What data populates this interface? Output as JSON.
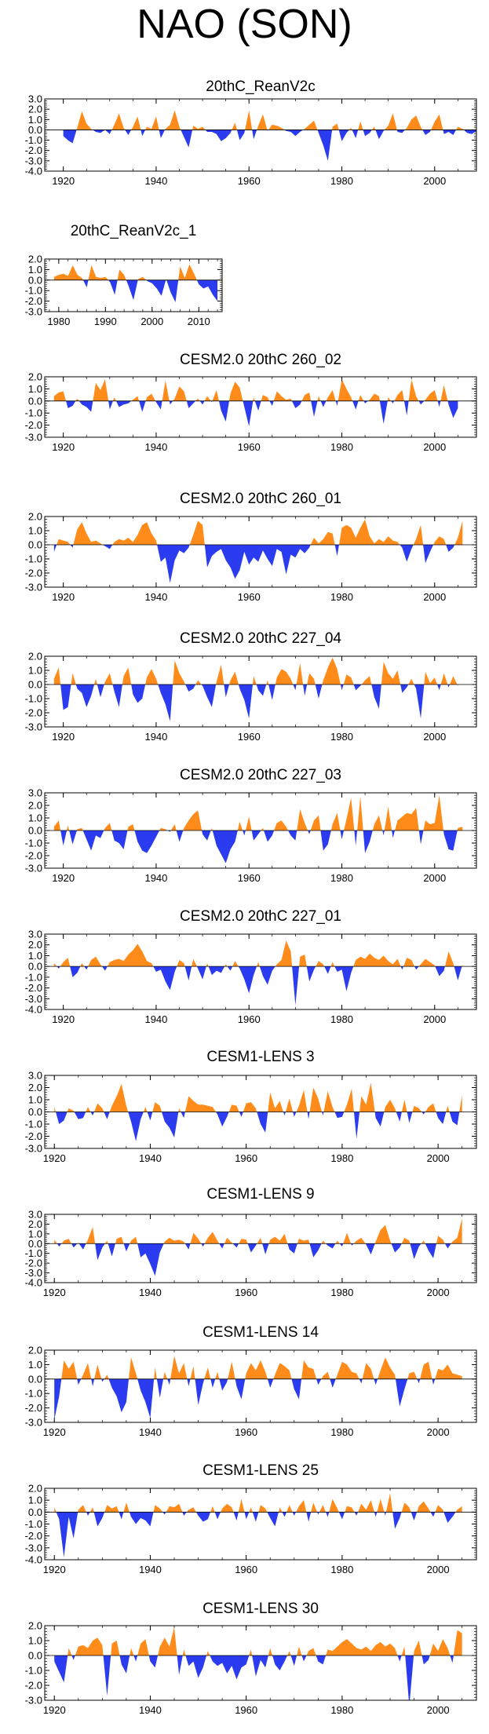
{
  "page_title": "NAO (SON)",
  "colors": {
    "positive": "#ff8c1a",
    "negative": "#2b3bef",
    "axis": "#000000"
  },
  "chart_data": [
    {
      "type": "area",
      "title": "20thC_ReanV2c",
      "x_start": 1920,
      "x_end": 2007,
      "xlim": [
        1916,
        2009
      ],
      "ylim": [
        -4.0,
        3.0
      ],
      "yticks": [
        "3.0",
        "2.0",
        "1.0",
        "0.0",
        "-1.0",
        "-2.0",
        "-3.0",
        "-4.0"
      ],
      "xticks": [
        "1920",
        "1940",
        "1960",
        "1980",
        "2000"
      ],
      "values": [
        -0.6,
        -1.0,
        -1.3,
        0.2,
        1.8,
        0.6,
        0.1,
        -0.2,
        -0.3,
        0.0,
        -0.4,
        0.5,
        1.6,
        0.2,
        -0.5,
        0.3,
        1.3,
        -0.6,
        0.3,
        0.1,
        1.3,
        -0.8,
        0.1,
        0.5,
        1.9,
        0.3,
        -0.7,
        -1.7,
        0.4,
        0.1,
        0.3,
        -0.2,
        -0.2,
        -0.4,
        -1.1,
        -0.8,
        -0.3,
        0.7,
        -1.0,
        -0.3,
        1.9,
        -0.9,
        0.4,
        1.5,
        -0.1,
        0.5,
        0.4,
        0.2,
        -0.1,
        -0.2,
        -0.6,
        -0.2,
        0.1,
        0.5,
        0.9,
        -0.3,
        -1.5,
        -3.0,
        0.3,
        0.6,
        -1.1,
        -0.3,
        0.2,
        -0.8,
        0.8,
        -0.6,
        -0.3,
        0.3,
        -0.9,
        -0.1,
        0.4,
        1.6,
        -0.2,
        -0.3,
        0.2,
        1.0,
        1.4,
        0.3,
        -0.5,
        -0.2,
        0.8,
        1.5,
        -0.4,
        -0.2,
        -0.5,
        0.3,
        0.1,
        -0.3,
        -0.4,
        -0.1
      ]
    },
    {
      "type": "area",
      "title": "20thC_ReanV2c_1",
      "x_start": 1979,
      "x_end": 2014,
      "xlim": [
        1977,
        2015
      ],
      "ylim": [
        -3.0,
        2.0
      ],
      "yticks": [
        "2.0",
        "1.0",
        "0.0",
        "-1.0",
        "-2.0",
        "-3.0"
      ],
      "xticks": [
        "1980",
        "1990",
        "2000",
        "2010"
      ],
      "values": [
        0.3,
        0.5,
        0.6,
        0.4,
        1.4,
        0.5,
        0.2,
        -0.7,
        1.4,
        0.3,
        0.2,
        0.3,
        -0.2,
        -1.4,
        1.0,
        0.5,
        -0.6,
        -1.9,
        0.1,
        0.3,
        -0.1,
        -0.3,
        -0.8,
        -1.5,
        0.1,
        -1.2,
        -2.1,
        1.3,
        0.2,
        1.5,
        0.6,
        -0.4,
        -0.8,
        -0.6,
        -1.4,
        -2.0
      ]
    },
    {
      "type": "area",
      "title": "CESM2.0 20thC 260_02",
      "x_start": 1918,
      "x_end": 2005,
      "xlim": [
        1916,
        2009
      ],
      "ylim": [
        -3.0,
        2.0
      ],
      "yticks": [
        "2.0",
        "1.0",
        "0.0",
        "-1.0",
        "-2.0",
        "-3.0"
      ],
      "xticks": [
        "1920",
        "1940",
        "1960",
        "1980",
        "2000"
      ],
      "values": [
        0.4,
        0.7,
        0.8,
        -0.6,
        -0.4,
        0.2,
        -0.3,
        -0.5,
        -0.9,
        1.5,
        0.9,
        1.8,
        -0.7,
        0.3,
        -0.5,
        -0.3,
        -0.2,
        0.1,
        0.4,
        -0.9,
        0.3,
        0.6,
        -0.1,
        -0.7,
        1.7,
        -0.3,
        0.2,
        1.2,
        0.8,
        -0.6,
        -0.2,
        0.2,
        -0.3,
        0.4,
        -0.1,
        0.9,
        -0.8,
        -1.7,
        0.6,
        1.6,
        1.1,
        -0.5,
        -2.1,
        0.3,
        -0.8,
        0.5,
        0.3,
        -0.4,
        0.8,
        0.4,
        0.1,
        0.2,
        -0.6,
        -0.3,
        0.5,
        0.7,
        -1.3,
        0.4,
        -0.5,
        0.3,
        0.9,
        -0.4,
        1.8,
        1.0,
        0.3,
        -0.7,
        0.5,
        -0.2,
        0.1,
        0.6,
        0.4,
        -1.9,
        0.3,
        -0.2,
        0.5,
        0.9,
        -1.2,
        1.8,
        0.4,
        -0.3,
        0.1,
        0.6,
        0.9,
        -0.5,
        1.3,
        -0.3,
        -1.4,
        -0.6
      ]
    },
    {
      "type": "area",
      "title": "CESM2.0 20thC 260_01",
      "x_start": 1918,
      "x_end": 2006,
      "xlim": [
        1916,
        2009
      ],
      "ylim": [
        -3.0,
        2.0
      ],
      "yticks": [
        "2.0",
        "1.0",
        "0.0",
        "-1.0",
        "-2.0",
        "-3.0"
      ],
      "xticks": [
        "1920",
        "1940",
        "1960",
        "1980",
        "2000"
      ],
      "values": [
        -0.5,
        0.4,
        0.3,
        0.2,
        -0.2,
        1.1,
        1.6,
        0.8,
        0.2,
        0.3,
        0.1,
        -0.1,
        -0.3,
        0.2,
        0.4,
        0.3,
        0.5,
        0.2,
        0.7,
        1.4,
        1.6,
        0.8,
        0.3,
        -1.2,
        -0.9,
        -2.7,
        -1.1,
        -0.4,
        -0.6,
        -0.2,
        0.7,
        1.7,
        1.4,
        -1.6,
        -0.8,
        -0.5,
        -0.3,
        -1.1,
        -1.6,
        -2.4,
        -1.8,
        -0.5,
        -1.4,
        -0.9,
        -1.2,
        -0.4,
        -1.0,
        -1.5,
        -0.3,
        -0.5,
        -2.1,
        -0.7,
        -0.9,
        -0.3,
        -0.6,
        -0.2,
        0.5,
        0.1,
        0.4,
        0.9,
        0.8,
        -0.8,
        1.2,
        1.4,
        1.2,
        0.5,
        1.2,
        1.8,
        0.6,
        0.1,
        0.4,
        0.2,
        0.6,
        0.3,
        0.2,
        -0.2,
        -1.2,
        -0.3,
        0.4,
        1.4,
        -1.3,
        -0.5,
        0.2,
        0.6,
        0.4,
        -0.5,
        -0.2,
        0.5,
        1.7
      ]
    },
    {
      "type": "area",
      "title": "CESM2.0 20thC 227_04",
      "x_start": 1918,
      "x_end": 2005,
      "xlim": [
        1916,
        2009
      ],
      "ylim": [
        -3.0,
        2.0
      ],
      "yticks": [
        "2.0",
        "1.0",
        "0.0",
        "-1.0",
        "-2.0",
        "-3.0"
      ],
      "xticks": [
        "1920",
        "1940",
        "1960",
        "1980",
        "2000"
      ],
      "values": [
        0.4,
        1.2,
        -1.8,
        -1.6,
        0.8,
        -0.3,
        -0.6,
        -1.6,
        -0.8,
        0.4,
        -0.9,
        0.2,
        0.8,
        -0.5,
        -1.6,
        0.6,
        1.2,
        -0.7,
        -1.3,
        -1.0,
        0.5,
        1.1,
        0.4,
        -0.6,
        -1.4,
        -2.6,
        1.7,
        0.8,
        0.2,
        -0.5,
        -0.3,
        0.3,
        -0.1,
        -0.9,
        -1.6,
        0.2,
        1.4,
        -0.9,
        0.3,
        0.9,
        -0.3,
        -1.1,
        -2.4,
        0.6,
        -0.4,
        -0.8,
        0.3,
        -1.1,
        0.5,
        1.1,
        0.9,
        0.4,
        -0.4,
        1.5,
        -0.8,
        0.8,
        0.4,
        -1.0,
        0.3,
        1.2,
        1.9,
        1.1,
        -0.4,
        0.7,
        0.5,
        -0.4,
        -0.1,
        0.3,
        0.6,
        -0.9,
        -1.7,
        1.6,
        0.8,
        0.4,
        1.0,
        -0.6,
        -0.2,
        0.4,
        -0.3,
        -2.4,
        0.9,
        0.1,
        0.5,
        -0.4,
        0.8,
        -0.2,
        0.6,
        -0.1
      ]
    },
    {
      "type": "area",
      "title": "CESM2.0 20thC 227_03",
      "x_start": 1918,
      "x_end": 2006,
      "xlim": [
        1916,
        2009
      ],
      "ylim": [
        -3.0,
        3.0
      ],
      "yticks": [
        "3.0",
        "2.0",
        "1.0",
        "0.0",
        "-1.0",
        "-2.0",
        "-3.0"
      ],
      "xticks": [
        "1920",
        "1940",
        "1960",
        "1980",
        "2000"
      ],
      "values": [
        0.3,
        0.8,
        -1.2,
        0.4,
        -1.1,
        0.1,
        0.2,
        -0.7,
        -1.6,
        -0.4,
        -0.6,
        0.2,
        0.6,
        -0.8,
        -1.0,
        -1.5,
        0.3,
        0.5,
        -0.9,
        -1.6,
        -1.8,
        -1.2,
        -0.5,
        0.2,
        0.1,
        -0.1,
        0.5,
        -0.9,
        0.2,
        0.8,
        1.3,
        1.6,
        -0.3,
        -0.8,
        0.2,
        -1.2,
        -1.9,
        -2.6,
        -1.5,
        -0.9,
        0.7,
        -0.4,
        1.1,
        -0.8,
        -0.3,
        0.2,
        -0.9,
        -0.4,
        0.6,
        0.8,
        0.3,
        -0.4,
        -0.8,
        1.7,
        0.6,
        -0.3,
        0.8,
        1.2,
        -1.6,
        -1.1,
        0.5,
        1.4,
        -0.7,
        0.9,
        2.6,
        -1.2,
        2.7,
        -1.8,
        -0.9,
        0.5,
        1.2,
        -0.4,
        1.9,
        -0.6,
        0.8,
        1.1,
        1.4,
        1.3,
        1.8,
        -1.1,
        0.8,
        0.5,
        0.6,
        2.8,
        -0.3,
        -1.5,
        -1.6,
        0.2,
        0.3
      ]
    },
    {
      "type": "area",
      "title": "CESM2.0 20thC 227_01",
      "x_start": 1918,
      "x_end": 2006,
      "xlim": [
        1916,
        2009
      ],
      "ylim": [
        -4.0,
        3.0
      ],
      "yticks": [
        "3.0",
        "2.0",
        "1.0",
        "0.0",
        "-1.0",
        "-2.0",
        "-3.0",
        "-4.0"
      ],
      "xticks": [
        "1920",
        "1940",
        "1960",
        "1980",
        "2000"
      ],
      "values": [
        0.3,
        -0.2,
        0.4,
        0.8,
        -1.0,
        -0.6,
        0.3,
        -0.3,
        0.6,
        0.9,
        0.2,
        -0.4,
        0.4,
        0.6,
        0.7,
        0.5,
        1.1,
        1.5,
        2.1,
        1.4,
        0.5,
        0.3,
        -0.5,
        -0.3,
        -1.4,
        -2.2,
        -0.5,
        0.6,
        0.3,
        -1.3,
        0.7,
        -0.2,
        -1.2,
        0.3,
        -0.8,
        -0.4,
        -0.6,
        0.2,
        -0.4,
        0.5,
        -0.2,
        -1.2,
        -2.5,
        -0.8,
        0.4,
        -0.9,
        -1.7,
        -0.4,
        0.2,
        0.6,
        2.4,
        1.4,
        -3.6,
        0.9,
        1.1,
        -1.4,
        -0.3,
        0.5,
        0.2,
        -0.7,
        0.4,
        -0.5,
        -0.3,
        -2.3,
        -0.6,
        0.6,
        0.9,
        0.7,
        1.2,
        0.8,
        0.6,
        1.0,
        0.5,
        0.2,
        0.7,
        -0.3,
        0.8,
        0.6,
        -0.3,
        0.2,
        0.7,
        0.4,
        0.1,
        -0.9,
        -0.4,
        1.4,
        0.3,
        -1.3,
        0.2
      ]
    },
    {
      "type": "area",
      "title": "CESM1-LENS 3",
      "x_start": 1920,
      "x_end": 2005,
      "xlim": [
        1918,
        2008
      ],
      "ylim": [
        -3.0,
        3.0
      ],
      "yticks": [
        "3.0",
        "2.0",
        "1.0",
        "0.0",
        "-1.0",
        "-2.0",
        "-3.0"
      ],
      "xticks": [
        "1920",
        "1940",
        "1960",
        "1980",
        "2000"
      ],
      "values": [
        0.4,
        -1.0,
        -0.7,
        0.3,
        0.1,
        -0.6,
        -0.5,
        0.4,
        -0.3,
        0.7,
        0.3,
        -0.6,
        0.5,
        1.3,
        2.3,
        0.5,
        -0.8,
        -2.4,
        -0.6,
        0.4,
        -0.7,
        0.8,
        0.5,
        -0.8,
        -1.3,
        -2.1,
        0.3,
        -0.5,
        1.3,
        0.9,
        0.6,
        0.6,
        0.5,
        0.4,
        -0.2,
        -1.2,
        -0.4,
        0.6,
        0.5,
        -0.4,
        0.7,
        0.8,
        0.3,
        -1.0,
        -1.7,
        1.6,
        0.3,
        0.9,
        -0.3,
        1.1,
        -0.4,
        0.5,
        1.8,
        -0.6,
        2.0,
        1.1,
        -0.3,
        1.7,
        0.4,
        -0.5,
        -0.4,
        0.6,
        1.9,
        -2.2,
        1.3,
        0.6,
        2.4,
        -0.5,
        -1.2,
        0.4,
        1.0,
        0.3,
        -0.8,
        1.0,
        -0.9,
        0.5,
        0.3,
        -0.2,
        0.4,
        0.7,
        -0.5,
        -1.0,
        0.5,
        -0.8,
        -1.1,
        1.4
      ]
    },
    {
      "type": "area",
      "title": "CESM1-LENS 9",
      "x_start": 1920,
      "x_end": 2005,
      "xlim": [
        1918,
        2008
      ],
      "ylim": [
        -4.0,
        3.0
      ],
      "yticks": [
        "3.0",
        "2.0",
        "1.0",
        "0.0",
        "-1.0",
        "-2.0",
        "-3.0",
        "-4.0"
      ],
      "xticks": [
        "1920",
        "1940",
        "1960",
        "1980",
        "2000"
      ],
      "values": [
        0.4,
        -0.3,
        0.3,
        0.5,
        -0.4,
        0.1,
        -0.6,
        0.4,
        1.7,
        -1.7,
        -0.4,
        0.3,
        -1.3,
        0.5,
        0.7,
        -0.8,
        0.3,
        0.7,
        -1.4,
        -1.0,
        -2.1,
        -3.3,
        -0.9,
        0.2,
        0.6,
        0.3,
        0.4,
        0.2,
        -0.6,
        1.1,
        0.5,
        -0.3,
        0.6,
        1.2,
        0.3,
        -0.5,
        0.6,
        0.1,
        -0.4,
        0.5,
        0.4,
        -0.9,
        -0.2,
        0.6,
        -1.1,
        0.4,
        0.7,
        0.3,
        1.0,
        -0.6,
        -1.0,
        0.5,
        0.3,
        0.4,
        -1.4,
        -0.7,
        0.3,
        -0.2,
        -0.5,
        0.3,
        -0.3,
        1.1,
        -0.2,
        0.3,
        0.6,
        -0.1,
        -1.1,
        0.2,
        1.4,
        1.9,
        0.3,
        -0.9,
        -0.4,
        0.6,
        0.3,
        -1.6,
        -0.3,
        0.3,
        -0.7,
        -1.5,
        0.8,
        0.4,
        -0.5,
        0.2,
        0.6,
        2.6
      ]
    },
    {
      "type": "area",
      "title": "CESM1-LENS 14",
      "x_start": 1920,
      "x_end": 2005,
      "xlim": [
        1918,
        2008
      ],
      "ylim": [
        -3.0,
        2.0
      ],
      "yticks": [
        "2.0",
        "1.0",
        "0.0",
        "-1.0",
        "-2.0",
        "-3.0"
      ],
      "xticks": [
        "1920",
        "1940",
        "1960",
        "1980",
        "2000"
      ],
      "values": [
        -2.8,
        -1.2,
        1.3,
        0.7,
        1.2,
        -0.4,
        0.3,
        1.1,
        -0.5,
        1.0,
        -0.2,
        0.3,
        -0.6,
        -1.2,
        -2.3,
        -1.6,
        1.5,
        0.4,
        -0.8,
        -1.6,
        -2.7,
        0.8,
        -1.3,
        0.5,
        -0.4,
        1.6,
        0.4,
        1.1,
        -0.5,
        0.9,
        -1.8,
        -0.3,
        0.8,
        -0.6,
        0.5,
        -0.8,
        -0.2,
        1.2,
        -0.5,
        -1.4,
        0.4,
        1.1,
        0.6,
        1.3,
        0.5,
        -0.6,
        0.3,
        1.1,
        0.9,
        0.6,
        -0.7,
        -1.4,
        1.3,
        0.8,
        0.7,
        -0.4,
        0.2,
        0.5,
        -0.6,
        0.3,
        1.2,
        1.0,
        0.5,
        0.4,
        -0.3,
        1.1,
        0.7,
        -0.4,
        0.6,
        1.5,
        0.8,
        0.3,
        -1.9,
        -0.7,
        0.4,
        0.5,
        -0.3,
        1.0,
        1.2,
        -0.4,
        0.7,
        0.6,
        1.0,
        0.4,
        0.3,
        0.2
      ]
    },
    {
      "type": "area",
      "title": "CESM1-LENS 25",
      "x_start": 1920,
      "x_end": 2005,
      "xlim": [
        1918,
        2008
      ],
      "ylim": [
        -4.0,
        2.0
      ],
      "yticks": [
        "2.0",
        "1.0",
        "0.0",
        "-1.0",
        "-2.0",
        "-3.0",
        "-4.0"
      ],
      "xticks": [
        "1920",
        "1940",
        "1960",
        "1980",
        "2000"
      ],
      "values": [
        0.4,
        -0.6,
        -3.8,
        -0.4,
        -2.2,
        0.2,
        0.6,
        -0.3,
        0.4,
        -1.2,
        -0.5,
        0.6,
        0.3,
        0.5,
        -0.6,
        0.8,
        -0.4,
        -1.0,
        -0.5,
        -0.7,
        -1.2,
        0.6,
        0.3,
        -0.2,
        0.5,
        0.4,
        0.7,
        -0.3,
        0.2,
        0.4,
        -0.3,
        -0.8,
        -0.6,
        0.5,
        -0.6,
        0.3,
        0.7,
        0.4,
        -0.7,
        1.1,
        -0.6,
        0.4,
        -0.8,
        0.6,
        0.3,
        -0.5,
        -1.2,
        0.4,
        -0.4,
        0.6,
        -0.3,
        0.5,
        1.0,
        -0.8,
        0.8,
        -0.2,
        0.6,
        -0.4,
        1.1,
        0.3,
        -0.6,
        0.5,
        0.4,
        -0.3,
        0.7,
        0.2,
        1.0,
        -0.4,
        1.1,
        -0.3,
        1.6,
        -1.4,
        -0.5,
        0.8,
        0.4,
        -0.7,
        0.5,
        0.9,
        0.3,
        -0.4,
        0.6,
        0.2,
        -0.9,
        -0.4,
        0.2,
        0.5
      ]
    },
    {
      "type": "area",
      "title": "CESM1-LENS 30",
      "x_start": 1920,
      "x_end": 2005,
      "xlim": [
        1918,
        2008
      ],
      "ylim": [
        -3.0,
        2.0
      ],
      "yticks": [
        "2.0",
        "1.0",
        "0.0",
        "-1.0",
        "-2.0",
        "-3.0"
      ],
      "xticks": [
        "1920",
        "1940",
        "1960",
        "1980",
        "2000"
      ],
      "values": [
        -0.4,
        -1.1,
        -1.8,
        0.5,
        -0.3,
        0.6,
        0.7,
        0.5,
        1.0,
        1.2,
        0.7,
        -2.7,
        0.8,
        1.0,
        -0.6,
        -1.2,
        0.5,
        -0.4,
        0.8,
        1.1,
        -0.4,
        -0.8,
        0.6,
        1.2,
        0.6,
        1.9,
        -1.3,
        0.4,
        -0.7,
        -0.4,
        -1.5,
        -0.8,
        0.3,
        -0.4,
        -0.7,
        -0.5,
        -1.2,
        -0.7,
        -1.6,
        -0.8,
        -0.6,
        0.4,
        -1.4,
        -0.3,
        -0.8,
        0.5,
        -0.6,
        -1.0,
        -0.4,
        0.3,
        -0.7,
        0.6,
        -0.4,
        0.3,
        0.5,
        -0.4,
        -0.6,
        0.4,
        0.3,
        0.6,
        0.9,
        1.1,
        0.8,
        0.5,
        0.4,
        0.6,
        0.3,
        0.7,
        0.9,
        0.6,
        0.8,
        0.5,
        -0.4,
        0.6,
        -3.4,
        0.3,
        1.0,
        -0.6,
        -0.3,
        0.8,
        0.3,
        1.1,
        0.5,
        -0.5,
        1.7,
        1.5
      ]
    }
  ]
}
